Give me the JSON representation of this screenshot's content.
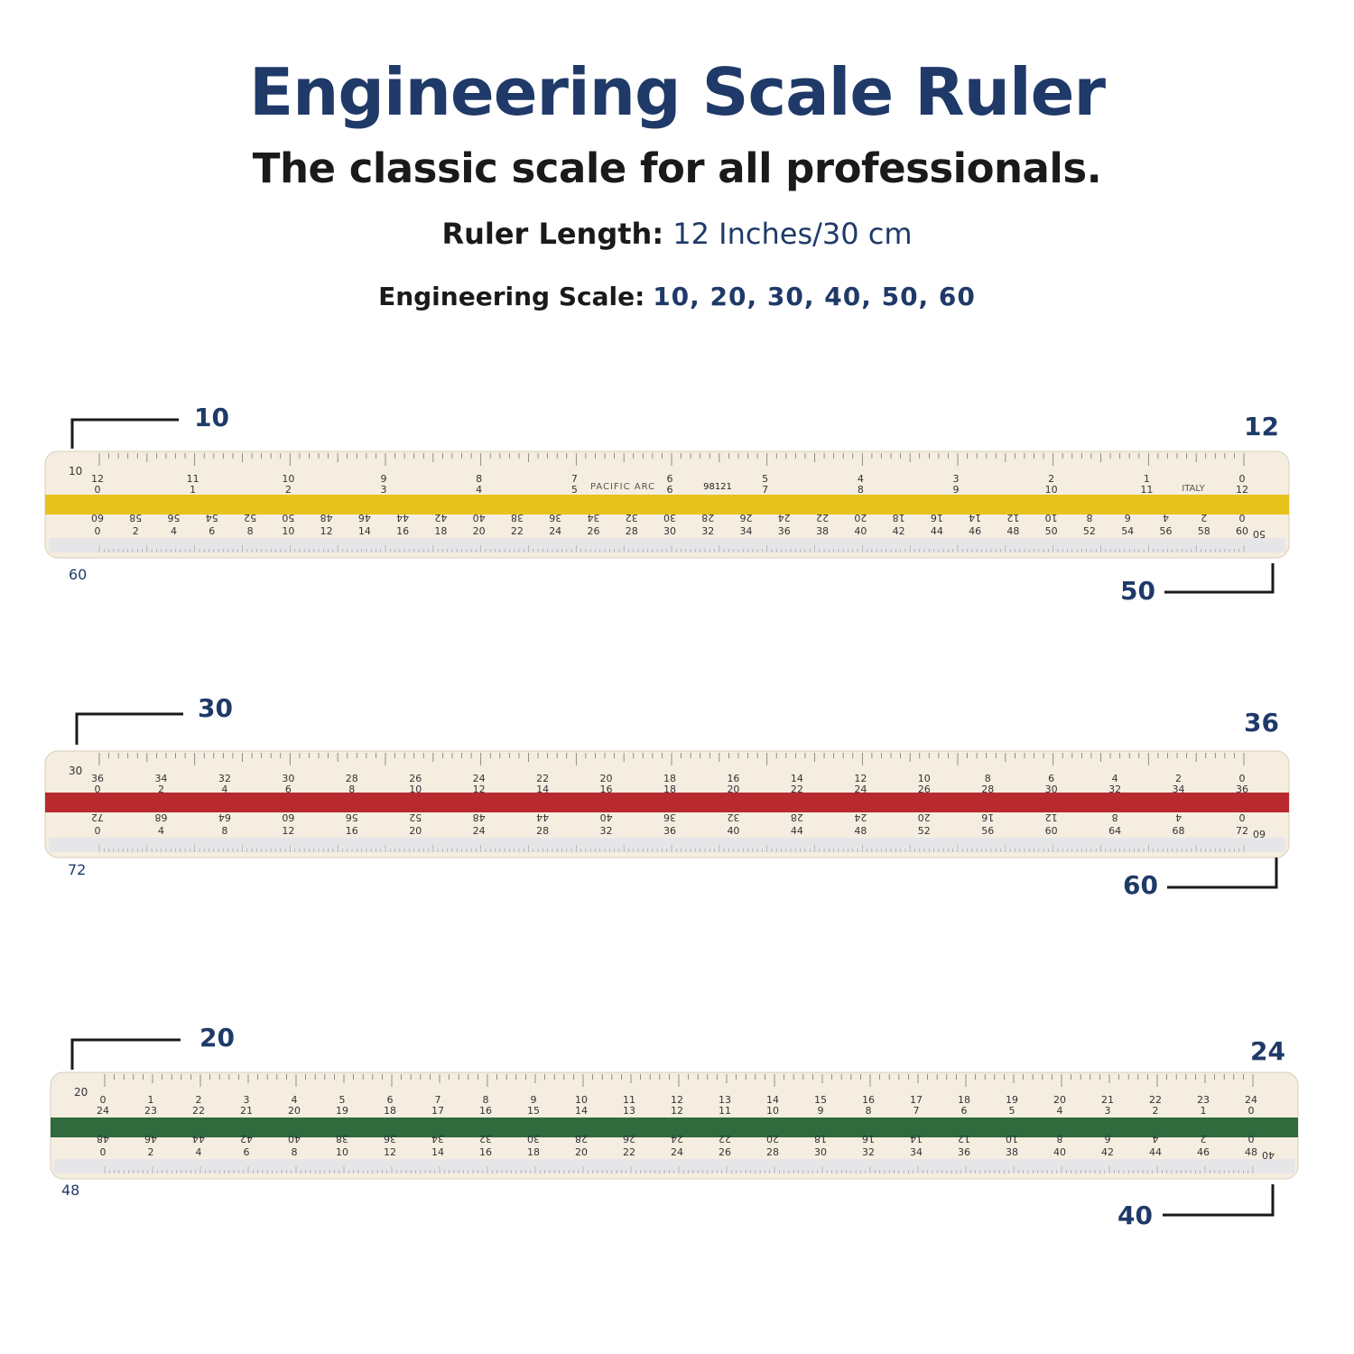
{
  "header": {
    "title": "Engineering Scale Ruler",
    "subtitle": "The classic scale for all professionals.",
    "length_label": "Ruler Length:",
    "length_value": "12 Inches/30 cm",
    "scale_label": "Engineering Scale:",
    "scale_value": "10, 20, 30, 40, 50, 60"
  },
  "rulers": [
    {
      "stripe_color": "#e8c21c",
      "top_left_callout": "10",
      "top_right_callout": "12",
      "bottom_right_callout": "50",
      "bottom_left_face": "60",
      "face_top_mark": "10",
      "face_bottom_mark": "50",
      "brand_text": "PACIFIC ARC",
      "model_text": "98121",
      "origin_text": "ITALY",
      "top_row_a": [
        "12",
        "11",
        "10",
        "9",
        "8",
        "7",
        "6",
        "5",
        "4",
        "3",
        "2",
        "1",
        "0"
      ],
      "top_row_b": [
        "0",
        "1",
        "2",
        "3",
        "4",
        "5",
        "6",
        "7",
        "8",
        "9",
        "10",
        "11",
        "12"
      ],
      "bottom_row_a": [
        "60",
        "58",
        "56",
        "54",
        "52",
        "50",
        "48",
        "46",
        "44",
        "42",
        "40",
        "38",
        "36",
        "34",
        "32",
        "30",
        "28",
        "26",
        "24",
        "22",
        "20",
        "18",
        "16",
        "14",
        "12",
        "10",
        "8",
        "6",
        "4",
        "2",
        "0"
      ],
      "bottom_row_b": [
        "0",
        "2",
        "4",
        "6",
        "8",
        "10",
        "12",
        "14",
        "16",
        "18",
        "20",
        "22",
        "24",
        "26",
        "28",
        "30",
        "32",
        "34",
        "36",
        "38",
        "40",
        "42",
        "44",
        "46",
        "48",
        "50",
        "52",
        "54",
        "56",
        "58",
        "60"
      ]
    },
    {
      "stripe_color": "#b82a2e",
      "top_left_callout": "30",
      "top_right_callout": "36",
      "bottom_right_callout": "60",
      "bottom_left_face": "72",
      "face_top_mark": "30",
      "face_bottom_mark": "60",
      "top_row_a": [
        "36",
        "34",
        "32",
        "30",
        "28",
        "26",
        "24",
        "22",
        "20",
        "18",
        "16",
        "14",
        "12",
        "10",
        "8",
        "6",
        "4",
        "2",
        "0"
      ],
      "top_row_b": [
        "0",
        "2",
        "4",
        "6",
        "8",
        "10",
        "12",
        "14",
        "16",
        "18",
        "20",
        "22",
        "24",
        "26",
        "28",
        "30",
        "32",
        "34",
        "36"
      ],
      "bottom_row_a": [
        "72",
        "68",
        "64",
        "60",
        "56",
        "52",
        "48",
        "44",
        "40",
        "36",
        "32",
        "28",
        "24",
        "20",
        "16",
        "12",
        "8",
        "4",
        "0"
      ],
      "bottom_row_b": [
        "0",
        "4",
        "8",
        "12",
        "16",
        "20",
        "24",
        "28",
        "32",
        "36",
        "40",
        "44",
        "48",
        "52",
        "56",
        "60",
        "64",
        "68",
        "72"
      ]
    },
    {
      "stripe_color": "#2f6b3c",
      "top_left_callout": "20",
      "top_right_callout": "24",
      "bottom_right_callout": "40",
      "bottom_left_face": "48",
      "face_top_mark": "20",
      "face_bottom_mark": "40",
      "top_row_a": [
        "0",
        "1",
        "2",
        "3",
        "4",
        "5",
        "6",
        "7",
        "8",
        "9",
        "10",
        "11",
        "12",
        "13",
        "14",
        "15",
        "16",
        "17",
        "18",
        "19",
        "20",
        "21",
        "22",
        "23",
        "24"
      ],
      "top_row_b": [
        "24",
        "23",
        "22",
        "21",
        "20",
        "19",
        "18",
        "17",
        "16",
        "15",
        "14",
        "13",
        "12",
        "11",
        "10",
        "9",
        "8",
        "7",
        "6",
        "5",
        "4",
        "3",
        "2",
        "1",
        "0"
      ],
      "bottom_row_a": [
        "48",
        "46",
        "44",
        "42",
        "40",
        "38",
        "36",
        "34",
        "32",
        "30",
        "28",
        "26",
        "24",
        "22",
        "20",
        "18",
        "16",
        "14",
        "12",
        "10",
        "8",
        "6",
        "4",
        "2",
        "0"
      ],
      "bottom_row_b": [
        "0",
        "2",
        "4",
        "6",
        "8",
        "10",
        "12",
        "14",
        "16",
        "18",
        "20",
        "22",
        "24",
        "26",
        "28",
        "30",
        "32",
        "34",
        "36",
        "38",
        "40",
        "42",
        "44",
        "46",
        "48"
      ]
    }
  ]
}
